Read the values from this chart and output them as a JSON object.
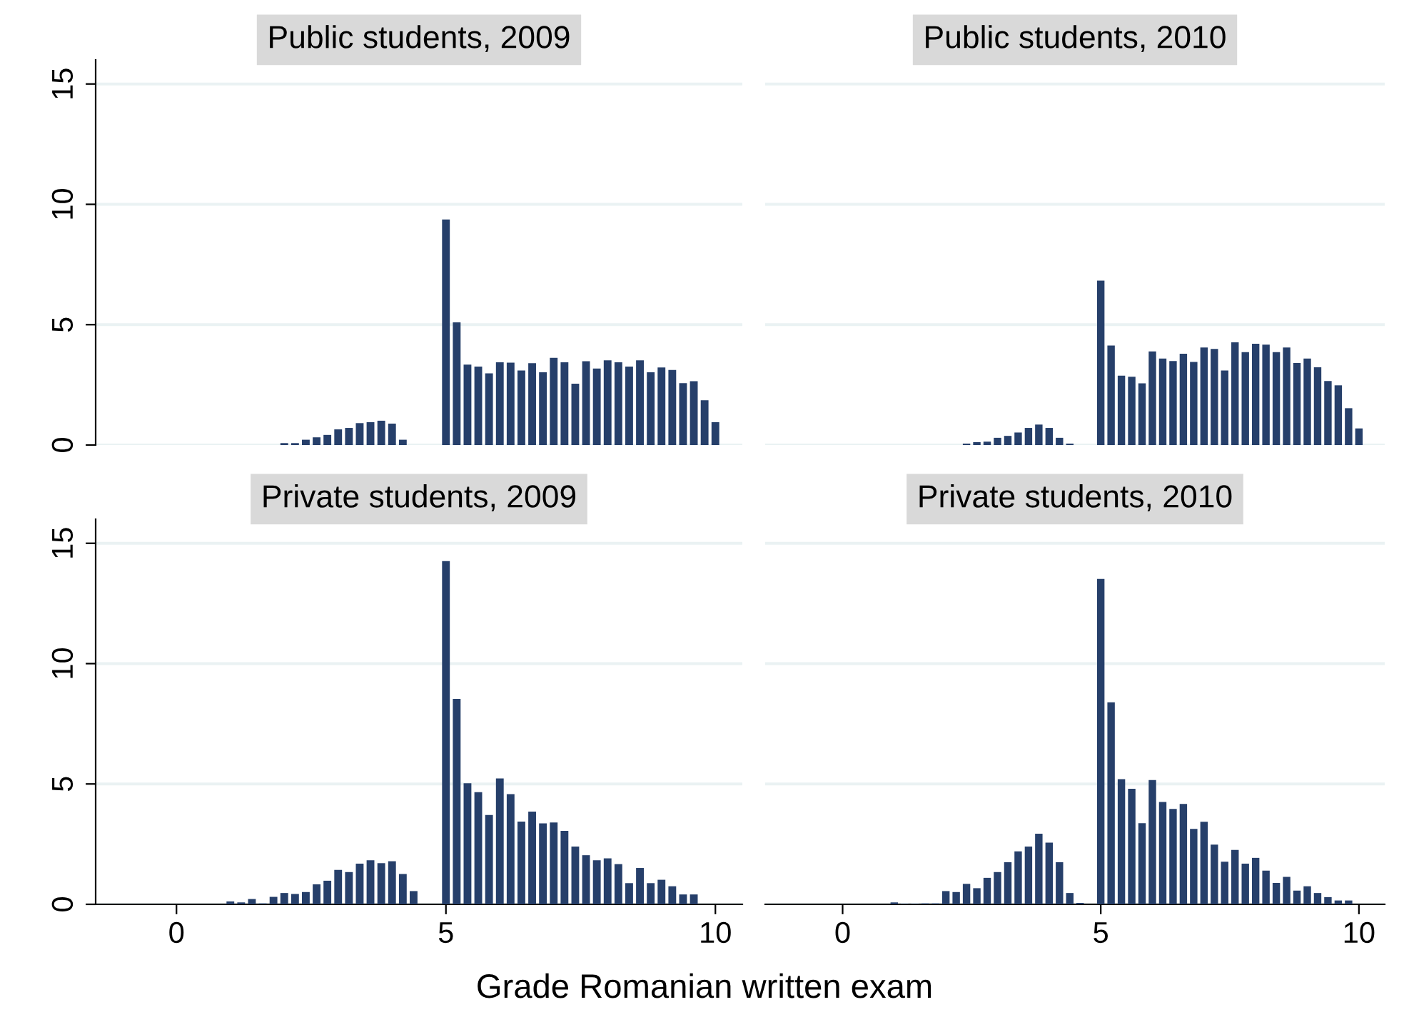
{
  "chart_data": [
    {
      "type": "histogram",
      "title": "Public students, 2009",
      "color": "#263f6a",
      "xlim": [
        -1.5,
        10.5
      ],
      "xticks": [
        0,
        5,
        10
      ],
      "ylim": [
        0,
        16
      ],
      "yticks": [
        0,
        5,
        10,
        15
      ],
      "grid": "y",
      "tick_labels": "y",
      "bins": [
        0.9,
        1.1,
        1.3,
        1.5,
        1.7,
        1.9,
        2.1,
        2.3,
        2.5,
        2.7,
        2.9,
        3.1,
        3.3,
        3.5,
        3.7,
        3.9,
        4.1,
        4.3,
        4.5,
        4.7,
        4.9,
        5.1,
        5.3,
        5.5,
        5.7,
        5.9,
        6.1,
        6.3,
        6.5,
        6.7,
        6.9,
        7.1,
        7.3,
        7.5,
        7.7,
        7.9,
        8.1,
        8.3,
        8.5,
        8.7,
        8.9,
        9.1,
        9.3,
        9.5,
        9.7,
        9.9,
        10.1
      ],
      "values": [
        0,
        0,
        0,
        0,
        0,
        0.08,
        0.08,
        0.22,
        0.32,
        0.42,
        0.65,
        0.71,
        0.91,
        0.95,
        1.01,
        0.89,
        0.22,
        0,
        0,
        0,
        9.37,
        5.1,
        3.34,
        3.26,
        2.98,
        3.44,
        3.42,
        3.1,
        3.4,
        3.02,
        3.62,
        3.44,
        2.55,
        3.48,
        3.18,
        3.52,
        3.44,
        3.26,
        3.52,
        3.02,
        3.22,
        3.12,
        2.57,
        2.65,
        1.86,
        0.95
      ]
    },
    {
      "type": "histogram",
      "title": "Public students, 2010",
      "color": "#263f6a",
      "xlim": [
        -1.5,
        10.5
      ],
      "xticks": [
        0,
        5,
        10
      ],
      "yticks": [
        0,
        5,
        10,
        15
      ],
      "grid": "y",
      "tick_labels": false,
      "bins": [
        0.9,
        1.1,
        1.3,
        1.5,
        1.7,
        1.9,
        2.1,
        2.3,
        2.5,
        2.7,
        2.9,
        3.1,
        3.3,
        3.5,
        3.7,
        3.9,
        4.1,
        4.3,
        4.5,
        4.7,
        4.9,
        5.1,
        5.3,
        5.5,
        5.7,
        5.9,
        6.1,
        6.3,
        6.5,
        6.7,
        6.9,
        7.1,
        7.3,
        7.5,
        7.7,
        7.9,
        8.1,
        8.3,
        8.5,
        8.7,
        8.9,
        9.1,
        9.3,
        9.5,
        9.7,
        9.9,
        10.1
      ],
      "values": [
        0,
        0,
        0,
        0,
        0,
        0,
        0,
        0.06,
        0.12,
        0.14,
        0.3,
        0.38,
        0.52,
        0.71,
        0.85,
        0.71,
        0.3,
        0.06,
        0,
        0,
        6.83,
        4.13,
        2.88,
        2.84,
        2.56,
        3.89,
        3.59,
        3.49,
        3.79,
        3.45,
        4.05,
        3.99,
        3.1,
        4.27,
        3.86,
        4.21,
        4.17,
        3.86,
        4.05,
        3.41,
        3.59,
        3.23,
        2.66,
        2.48,
        1.53,
        0.69
      ]
    },
    {
      "type": "histogram",
      "title": "Private students, 2009",
      "color": "#263f6a",
      "xlim": [
        -1.5,
        10.5
      ],
      "xticks": [
        0,
        5,
        10
      ],
      "ylim": [
        0,
        16
      ],
      "yticks": [
        0,
        5,
        10,
        15
      ],
      "grid": "y",
      "xlabel": "Grade Romanian written exam",
      "bins": [
        0.9,
        1.1,
        1.3,
        1.5,
        1.7,
        1.9,
        2.1,
        2.3,
        2.5,
        2.7,
        2.9,
        3.1,
        3.3,
        3.5,
        3.7,
        3.9,
        4.1,
        4.3,
        4.5,
        4.7,
        4.9,
        5.1,
        5.3,
        5.5,
        5.7,
        5.9,
        6.1,
        6.3,
        6.5,
        6.7,
        6.9,
        7.1,
        7.3,
        7.5,
        7.7,
        7.9,
        8.1,
        8.3,
        8.5,
        8.7,
        8.9,
        9.1,
        9.3,
        9.5,
        9.7,
        9.9,
        10.1
      ],
      "values": [
        0.12,
        0.08,
        0.22,
        0.04,
        0.31,
        0.47,
        0.43,
        0.51,
        0.83,
        0.98,
        1.43,
        1.34,
        1.69,
        1.83,
        1.71,
        1.79,
        1.26,
        0.55,
        0,
        0,
        14.26,
        8.53,
        5.03,
        4.66,
        3.71,
        5.23,
        4.58,
        3.44,
        3.85,
        3.36,
        3.4,
        3.05,
        2.4,
        2.04,
        1.83,
        1.91,
        1.67,
        0.88,
        1.51,
        0.88,
        1.02,
        0.75,
        0.41,
        0.41,
        0,
        0
      ]
    },
    {
      "type": "histogram",
      "title": "Private students, 2010",
      "color": "#263f6a",
      "xlim": [
        -1.5,
        10.5
      ],
      "xticks": [
        0,
        5,
        10
      ],
      "yticks": [
        0,
        5,
        10,
        15
      ],
      "grid": "y",
      "tick_labels": "x",
      "bins": [
        0.9,
        1.1,
        1.3,
        1.5,
        1.7,
        1.9,
        2.1,
        2.3,
        2.5,
        2.7,
        2.9,
        3.1,
        3.3,
        3.5,
        3.7,
        3.9,
        4.1,
        4.3,
        4.5,
        4.7,
        4.9,
        5.1,
        5.3,
        5.5,
        5.7,
        5.9,
        6.1,
        6.3,
        6.5,
        6.7,
        6.9,
        7.1,
        7.3,
        7.5,
        7.7,
        7.9,
        8.1,
        8.3,
        8.5,
        8.7,
        8.9,
        9.1,
        9.3,
        9.5,
        9.7,
        9.9,
        10.1
      ],
      "values": [
        0.08,
        0.02,
        0.02,
        0.04,
        0.04,
        0.55,
        0.51,
        0.85,
        0.67,
        1.1,
        1.34,
        1.75,
        2.2,
        2.4,
        2.93,
        2.56,
        1.75,
        0.47,
        0.06,
        0,
        13.52,
        8.39,
        5.2,
        4.8,
        3.37,
        5.16,
        4.25,
        3.96,
        4.17,
        3.13,
        3.43,
        2.48,
        1.77,
        2.26,
        1.69,
        1.93,
        1.4,
        0.89,
        1.14,
        0.57,
        0.75,
        0.47,
        0.3,
        0.16,
        0.16,
        0
      ]
    }
  ]
}
